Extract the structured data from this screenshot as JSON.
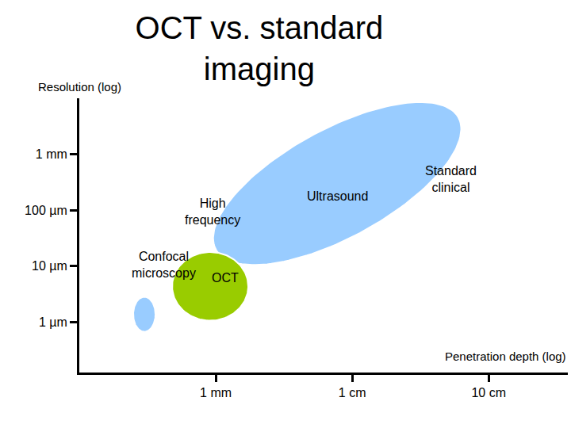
{
  "chart_data": {
    "type": "region",
    "title": "OCT vs. standard imaging",
    "xlabel": "Penetration depth (log)",
    "ylabel": "Resolution (log)",
    "log": true,
    "grid": false,
    "xlim": [
      0.1,
      380
    ],
    "ylim": [
      0.125,
      10000
    ],
    "xticks": [
      {
        "value": 1,
        "label": "1 mm"
      },
      {
        "value": 10,
        "label": "1 cm"
      },
      {
        "value": 100,
        "label": "10 cm"
      }
    ],
    "yticks": [
      {
        "value": 1,
        "label": "1 µm"
      },
      {
        "value": 10,
        "label": "10 µm"
      },
      {
        "value": 100,
        "label": "100 µm"
      },
      {
        "value": 1000,
        "label": "1 mm"
      }
    ],
    "series": [
      {
        "name": "Confocal microscopy",
        "color": "#99ccff",
        "points": [
          [
            0.248,
            1.37
          ],
          [
            0.361,
            1.37
          ],
          [
            0.3,
            0.668
          ],
          [
            0.3,
            2.82
          ]
        ]
      },
      {
        "name": "Ultrasound",
        "color": "#99ccff",
        "points": [
          [
            1.03,
            17.8
          ],
          [
            58.5,
            5012
          ],
          [
            13.4,
            48.7
          ],
          [
            4.48,
            1830
          ]
        ]
      },
      {
        "name": "OCT",
        "color": "#99cc00",
        "points": [
          [
            0.479,
            4.34
          ],
          [
            1.73,
            4.34
          ],
          [
            0.91,
            1.06
          ],
          [
            0.91,
            17.8
          ]
        ]
      }
    ],
    "annotations": [
      "High frequency",
      "Standard clinical"
    ]
  }
}
